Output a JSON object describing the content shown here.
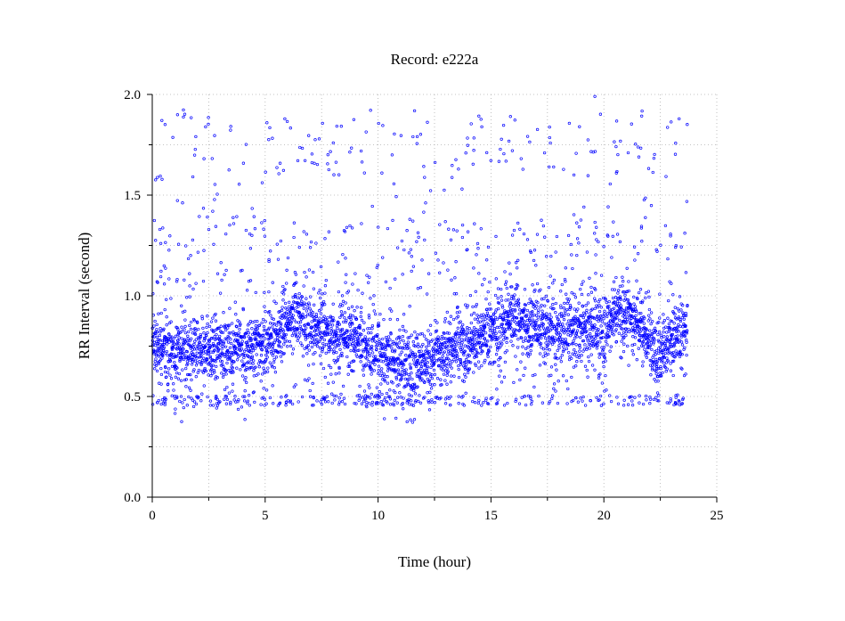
{
  "chart_data": {
    "type": "scatter",
    "title": "Record:  e222a",
    "xlabel": "Time (hour)",
    "ylabel": "RR Interval (second)",
    "xlim": [
      0,
      25
    ],
    "ylim": [
      0,
      2
    ],
    "x_ticks": [
      0,
      5,
      10,
      15,
      20,
      25
    ],
    "x_tick_labels": [
      "0",
      "5",
      "10",
      "15",
      "20",
      "25"
    ],
    "y_ticks": [
      0.0,
      0.5,
      1.0,
      1.5,
      2.0
    ],
    "y_tick_labels": [
      "0.0",
      "0.5",
      "1.0",
      "1.5",
      "2.0"
    ],
    "grid": true,
    "marker_color": "#0000ff",
    "series": [
      {
        "x_range": [
          0,
          23.7
        ],
        "trend": [
          [
            0.0,
            0.74
          ],
          [
            1.0,
            0.73
          ],
          [
            2.0,
            0.72
          ],
          [
            3.0,
            0.74
          ],
          [
            4.0,
            0.74
          ],
          [
            5.0,
            0.77
          ],
          [
            5.8,
            0.85
          ],
          [
            6.5,
            0.9
          ],
          [
            7.3,
            0.83
          ],
          [
            8.0,
            0.8
          ],
          [
            9.0,
            0.8
          ],
          [
            10.0,
            0.7
          ],
          [
            11.0,
            0.67
          ],
          [
            12.0,
            0.66
          ],
          [
            12.8,
            0.72
          ],
          [
            13.5,
            0.76
          ],
          [
            14.3,
            0.78
          ],
          [
            15.2,
            0.84
          ],
          [
            16.0,
            0.88
          ],
          [
            17.0,
            0.86
          ],
          [
            18.0,
            0.83
          ],
          [
            19.0,
            0.83
          ],
          [
            20.0,
            0.84
          ],
          [
            20.7,
            0.93
          ],
          [
            21.5,
            0.88
          ],
          [
            22.3,
            0.72
          ],
          [
            23.0,
            0.78
          ],
          [
            23.7,
            0.83
          ]
        ],
        "spread": 0.1,
        "outlier_bands": [
          {
            "y": [
              0.42,
              0.51
            ],
            "note": "short-interval band"
          },
          {
            "y": [
              1.1,
              1.35
            ],
            "note": "scattered"
          },
          {
            "y": [
              1.35,
              2.0
            ],
            "note": "sparse long intervals"
          }
        ]
      }
    ]
  }
}
